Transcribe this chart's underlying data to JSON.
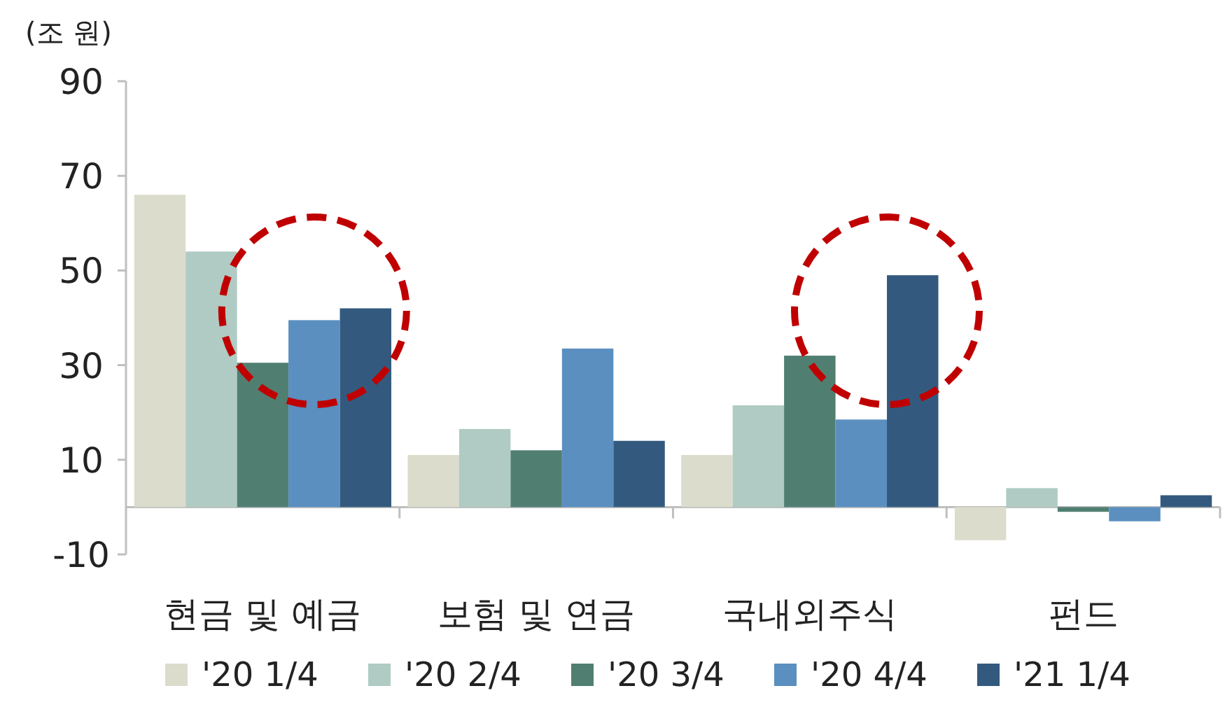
{
  "chart_data": {
    "type": "bar",
    "ylabel": "(조 원)",
    "categories": [
      "현금 및 예금",
      "보험 및 연금",
      "국내외주식",
      "펀드"
    ],
    "series": [
      {
        "name": "'20 1/4",
        "color": "#dcdccc",
        "values": [
          66,
          11,
          11,
          -7
        ]
      },
      {
        "name": "'20 2/4",
        "color": "#afcbc3",
        "values": [
          54,
          16.5,
          21.5,
          4
        ]
      },
      {
        "name": "'20 3/4",
        "color": "#507f72",
        "values": [
          30.5,
          12,
          32,
          -1
        ]
      },
      {
        "name": "'20 4/4",
        "color": "#5a8fc0",
        "values": [
          39.5,
          33.5,
          18.5,
          -3
        ]
      },
      {
        "name": "'21 1/4",
        "color": "#335a7e",
        "values": [
          42,
          14,
          49,
          2.5
        ]
      }
    ],
    "ylim": [
      -10,
      90
    ],
    "yticks": [
      -10,
      10,
      30,
      50,
      70,
      90
    ],
    "legend": "bottom",
    "grid": false
  }
}
